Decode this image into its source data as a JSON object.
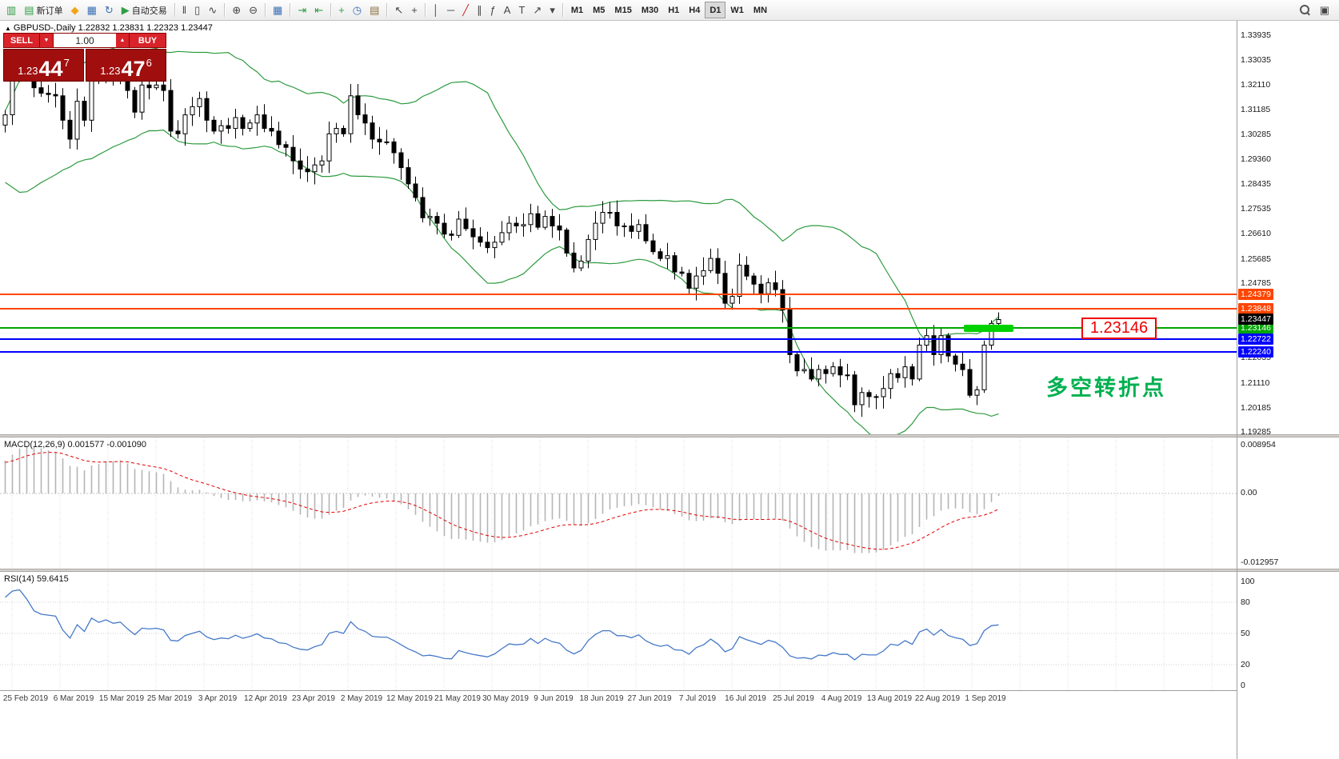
{
  "colors": {
    "bollinger": "#2d9b3f",
    "macd_bar": "#b5b5b5",
    "macd_signal": "#e00000",
    "rsi_line": "#4579c8",
    "accent_red": "#d8232a",
    "price_red": "#a00e0e",
    "callout_red": "#ee0000",
    "annotation_green": "#00b050"
  },
  "toolbar": {
    "groups": [
      {
        "items": [
          {
            "name": "terminal-chart-icon",
            "glyph": "▥",
            "color": "#2f9e44"
          },
          {
            "name": "new-order-button",
            "glyph": "▤",
            "color": "#2f9e44",
            "label": "新订单"
          },
          {
            "name": "metaeditor-button",
            "glyph": "◆",
            "color": "#f2a516"
          },
          {
            "name": "market-watch-button",
            "glyph": "▦",
            "color": "#3b6fb5"
          },
          {
            "name": "navigator-button",
            "glyph": "↻",
            "color": "#3b6fb5"
          },
          {
            "name": "auto-trading-button",
            "glyph": "▶",
            "color": "#2f9e44",
            "label": "自动交易"
          }
        ]
      },
      {
        "items": [
          {
            "name": "bar-chart-button",
            "glyph": "‖"
          },
          {
            "name": "candlestick-chart-button",
            "glyph": "▯"
          },
          {
            "name": "line-chart-button",
            "glyph": "∿"
          }
        ]
      },
      {
        "items": [
          {
            "name": "zoom-in-button",
            "glyph": "⊕"
          },
          {
            "name": "zoom-out-button",
            "glyph": "⊖"
          }
        ]
      },
      {
        "items": [
          {
            "name": "tile-windows-button",
            "glyph": "▦",
            "color": "#3b6fb5"
          }
        ]
      },
      {
        "items": [
          {
            "name": "auto-scroll-button",
            "glyph": "⇥",
            "color": "#2f9e44"
          },
          {
            "name": "chart-shift-button",
            "glyph": "⇤",
            "color": "#2f9e44"
          }
        ]
      },
      {
        "items": [
          {
            "name": "indicators-button",
            "glyph": "+",
            "color": "#2f9e44"
          },
          {
            "name": "periods-button",
            "glyph": "◷",
            "color": "#3b6fb5"
          },
          {
            "name": "templates-button",
            "glyph": "▤",
            "color": "#8a6d3b"
          }
        ]
      },
      {
        "items": [
          {
            "name": "cursor-button",
            "glyph": "↖"
          },
          {
            "name": "crosshair-button",
            "glyph": "+"
          }
        ]
      },
      {
        "items": [
          {
            "name": "vertical-line-button",
            "glyph": "│"
          },
          {
            "name": "horizontal-line-button",
            "glyph": "─"
          },
          {
            "name": "trendline-button",
            "glyph": "╱",
            "color": "#c62828"
          },
          {
            "name": "channel-button",
            "glyph": "∥"
          },
          {
            "name": "fibonacci-button",
            "glyph": "ƒ"
          },
          {
            "name": "text-button",
            "glyph": "A"
          },
          {
            "name": "label-button",
            "glyph": "T"
          },
          {
            "name": "arrows-button",
            "glyph": "↗"
          },
          {
            "name": "objects-dropdown-button",
            "glyph": "▾"
          }
        ]
      },
      {
        "kind": "tf",
        "items": [
          {
            "name": "timeframe-m1-button",
            "label": "M1"
          },
          {
            "name": "timeframe-m5-button",
            "label": "M5"
          },
          {
            "name": "timeframe-m15-button",
            "label": "M15"
          },
          {
            "name": "timeframe-m30-button",
            "label": "M30"
          },
          {
            "name": "timeframe-h1-button",
            "label": "H1"
          },
          {
            "name": "timeframe-h4-button",
            "label": "H4"
          },
          {
            "name": "timeframe-d1-button",
            "label": "D1",
            "active": true
          },
          {
            "name": "timeframe-w1-button",
            "label": "W1"
          },
          {
            "name": "timeframe-mn-button",
            "label": "MN"
          }
        ]
      }
    ]
  },
  "chart": {
    "header": {
      "arrow": "▲",
      "symbol": "GBPUSD-,Daily",
      "ohlc": "1.22832 1.23831 1.22323 1.23447"
    },
    "trade": {
      "sell_label": "SELL",
      "buy_label": "BUY",
      "volume": "1.00",
      "down_glyph": "▼",
      "up_glyph": "▲",
      "sell_price": {
        "base": "1.23",
        "big": "44",
        "sup": "7"
      },
      "buy_price": {
        "base": "1.23",
        "big": "47",
        "sup": "6"
      }
    },
    "callout": {
      "text": "1.23146"
    },
    "annotation": {
      "text": "多空转折点",
      "color": "#00b050"
    }
  },
  "macd": {
    "name": "MACD(12,26,9)",
    "values": "0.001577 -0.001090"
  },
  "rsi": {
    "name": "RSI(14)",
    "value": "59.6415"
  },
  "chart_data": {
    "type": "candlestick",
    "symbol": "GBPUSD",
    "period": "Daily",
    "ohlc_display": {
      "open": "1.22832",
      "high": "1.23831",
      "low": "1.22323",
      "close": "1.23447"
    },
    "closes": [
      1.31,
      1.325,
      1.33,
      1.326,
      1.32,
      1.318,
      1.3175,
      1.317,
      1.308,
      1.301,
      1.315,
      1.308,
      1.329,
      1.324,
      1.329,
      1.325,
      1.327,
      1.319,
      1.311,
      1.321,
      1.32,
      1.321,
      1.319,
      1.304,
      1.303,
      1.31,
      1.313,
      1.316,
      1.308,
      1.304,
      1.306,
      1.305,
      1.309,
      1.305,
      1.307,
      1.31,
      1.305,
      1.304,
      1.299,
      1.298,
      1.293,
      1.29,
      1.289,
      1.2915,
      1.293,
      1.303,
      1.305,
      1.303,
      1.317,
      1.31,
      1.307,
      1.301,
      1.3,
      1.3,
      1.296,
      1.2905,
      1.2845,
      1.2795,
      1.272,
      1.2725,
      1.27,
      1.266,
      1.2655,
      1.2715,
      1.268,
      1.265,
      1.263,
      1.261,
      1.263,
      1.2665,
      1.27,
      1.269,
      1.2695,
      1.2735,
      1.2685,
      1.2725,
      1.269,
      1.2675,
      1.259,
      1.2535,
      1.256,
      1.264,
      1.27,
      1.274,
      1.274,
      1.269,
      1.269,
      1.267,
      1.2695,
      1.2635,
      1.2595,
      1.257,
      1.258,
      1.252,
      1.2515,
      1.246,
      1.2505,
      1.2525,
      1.257,
      1.2515,
      1.2405,
      1.243,
      1.2545,
      1.2505,
      1.2475,
      1.244,
      1.248,
      1.2455,
      1.238,
      1.2215,
      1.2155,
      1.216,
      1.2125,
      1.216,
      1.2145,
      1.217,
      1.214,
      1.214,
      1.203,
      1.2075,
      1.206,
      1.206,
      1.209,
      1.2145,
      1.213,
      1.217,
      1.2125,
      1.225,
      1.2285,
      1.2215,
      1.2285,
      1.221,
      1.218,
      1.216,
      1.2065,
      1.2085,
      1.225,
      1.233,
      1.23447
    ],
    "indicators": {
      "bollinger": {
        "period": 20,
        "deviation": 2
      },
      "macd": {
        "fast": 12,
        "slow": 26,
        "signal": 9
      },
      "rsi": {
        "period": 14
      }
    },
    "price_axis": [
      "1.33935",
      "1.33035",
      "1.32110",
      "1.31185",
      "1.30285",
      "1.29360",
      "1.28435",
      "1.27535",
      "1.26610",
      "1.25685",
      "1.24785",
      "1.22035",
      "1.21110",
      "1.20185",
      "1.19285"
    ],
    "macd_axis": [
      "0.008954",
      "0.00",
      "-0.012957"
    ],
    "rsi_axis": [
      "100",
      "80",
      "50",
      "20",
      "0"
    ],
    "dates": [
      "25 Feb 2019",
      "6 Mar 2019",
      "15 Mar 2019",
      "25 Mar 2019",
      "3 Apr 2019",
      "12 Apr 2019",
      "23 Apr 2019",
      "2 May 2019",
      "12 May 2019",
      "21 May 2019",
      "30 May 2019",
      "9 Jun 2019",
      "18 Jun 2019",
      "27 Jun 2019",
      "7 Jul 2019",
      "16 Jul 2019",
      "25 Jul 2019",
      "4 Aug 2019",
      "13 Aug 2019",
      "22 Aug 2019",
      "1 Sep 2019"
    ],
    "hlines": [
      {
        "price": "1.24379",
        "value": 1.24379,
        "color": "#ff4500"
      },
      {
        "price": "1.23848",
        "value": 1.23848,
        "color": "#ff4500"
      },
      {
        "price": "1.23146",
        "value": 1.23146,
        "color": "#00a600"
      },
      {
        "price": "1.22722",
        "value": 1.22722,
        "color": "#0000ff"
      },
      {
        "price": "1.22240",
        "value": 1.2224,
        "color": "#0000ff"
      }
    ],
    "current_price_tag": {
      "price": "1.23447",
      "value": 1.23447,
      "color": "#000000"
    },
    "marker": {
      "value": 1.23146,
      "color": "#00d200"
    }
  }
}
